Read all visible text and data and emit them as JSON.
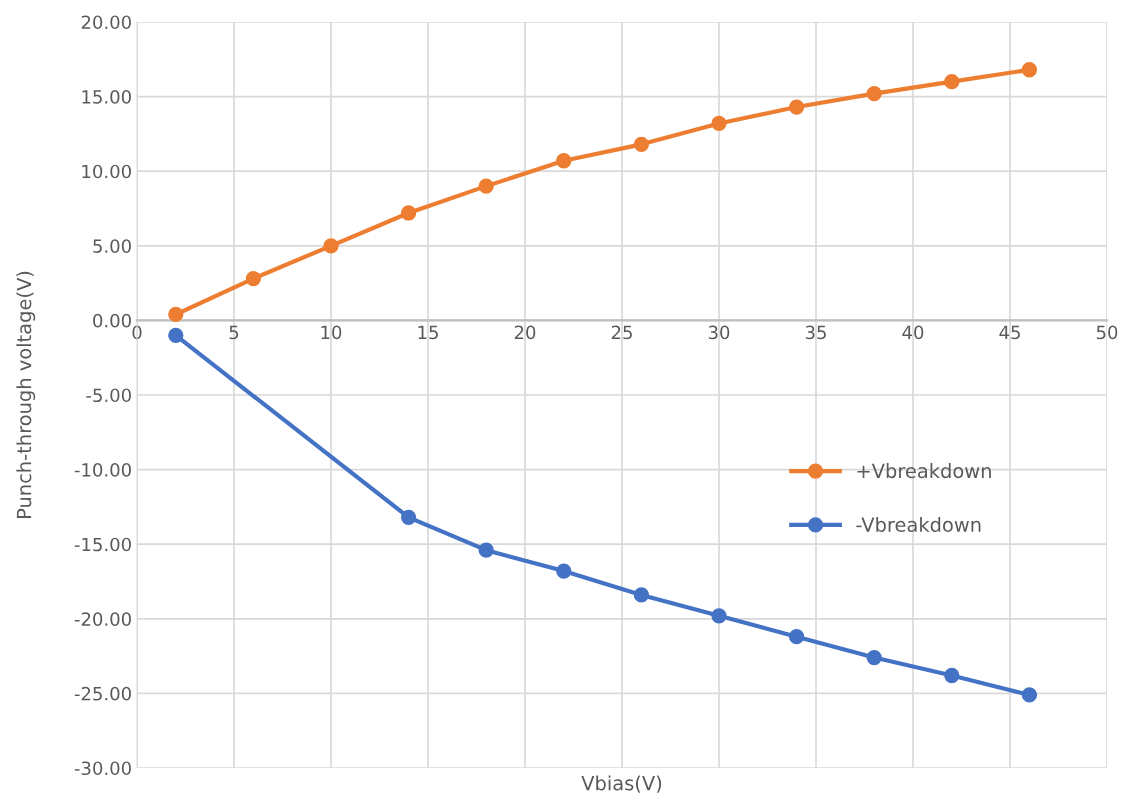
{
  "chart_data": {
    "type": "line",
    "xlabel": "Vbias(V)",
    "ylabel": "Punch-through voltage(V)",
    "series": [
      {
        "name": "+Vbreakdown",
        "color": "#ed7d31",
        "x": [
          2,
          6,
          10,
          14,
          18,
          22,
          26,
          30,
          34,
          38,
          42,
          46
        ],
        "values": [
          0.4,
          2.8,
          5.0,
          7.2,
          9.0,
          10.7,
          11.8,
          13.2,
          14.3,
          15.2,
          16.0,
          16.8
        ]
      },
      {
        "name": "-Vbreakdown",
        "color": "#4472c4",
        "x": [
          2,
          14,
          18,
          22,
          26,
          30,
          34,
          38,
          42,
          46
        ],
        "values": [
          -1.0,
          -13.2,
          -15.4,
          -16.8,
          -18.4,
          -19.8,
          -21.2,
          -22.6,
          -23.8,
          -25.1
        ]
      }
    ],
    "xlim": [
      0,
      50
    ],
    "xticks": [
      0,
      5,
      10,
      15,
      20,
      25,
      30,
      35,
      40,
      45,
      50
    ],
    "ylim": [
      -30,
      20
    ],
    "yticks": [
      {
        "value": -30,
        "label": "-30.00"
      },
      {
        "value": -25,
        "label": "-25.00"
      },
      {
        "value": -20,
        "label": "-20.00"
      },
      {
        "value": -15,
        "label": "-15.00"
      },
      {
        "value": -10,
        "label": "-10.00"
      },
      {
        "value": -5,
        "label": "-5.00"
      },
      {
        "value": 0,
        "label": "0.00"
      },
      {
        "value": 5,
        "label": "5.00"
      },
      {
        "value": 10,
        "label": "10.00"
      },
      {
        "value": 15,
        "label": "15.00"
      },
      {
        "value": 20,
        "label": "20.00"
      }
    ],
    "grid": true,
    "legend": "right",
    "marker": "circle",
    "line_style": "solid"
  }
}
